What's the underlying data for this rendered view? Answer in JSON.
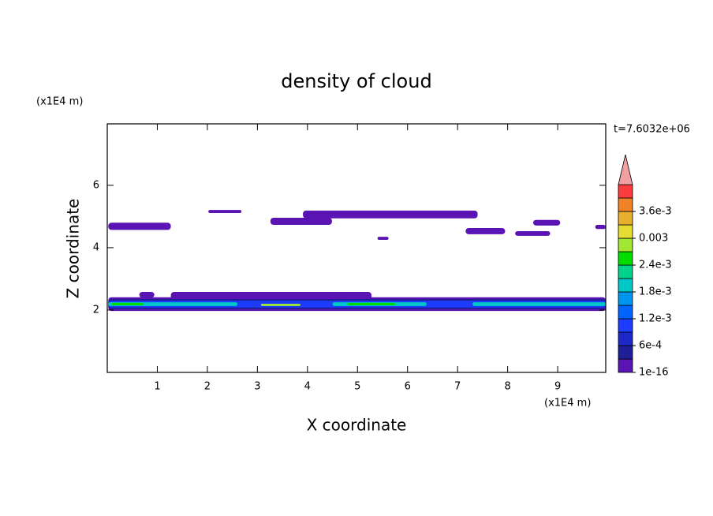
{
  "chart_data": {
    "type": "contour",
    "title": "density of cloud",
    "x_label": "X coordinate",
    "y_label": "Z coordinate",
    "x_unit": "(x1E4 m)",
    "y_unit": "(x1E4 m)",
    "time_label": "t=7.6032e+06",
    "xlim": [
      0,
      9.96
    ],
    "ylim": [
      0,
      7.97
    ],
    "xticks": [
      1,
      2,
      3,
      4,
      5,
      6,
      7,
      8,
      9
    ],
    "yticks": [
      2,
      4,
      6
    ],
    "levels": [
      1e-16,
      0.0003,
      0.0006,
      0.0009,
      0.0012,
      0.0015,
      0.0018,
      0.0021,
      0.0024,
      0.0027,
      0.003,
      0.0033,
      0.0036,
      0.0039
    ],
    "level_colors": [
      "#5a14b4",
      "#1e1e96",
      "#1e28c8",
      "#1e3cff",
      "#0064ff",
      "#0096f0",
      "#00c8c8",
      "#00d28c",
      "#00dc00",
      "#a0e632",
      "#e6dc32",
      "#e6af2d",
      "#f08228",
      "#fa3c3c"
    ],
    "overflow_color": "#f0a0a0",
    "colorbar_labels": [
      {
        "value": 1e-16,
        "label": "1e-16"
      },
      {
        "value": 0.0006,
        "label": "6e-4"
      },
      {
        "value": 0.0012,
        "label": "1.2e-3"
      },
      {
        "value": 0.0018,
        "label": "1.8e-3"
      },
      {
        "value": 0.0024,
        "label": "2.4e-3"
      },
      0.003,
      {
        "value": 0.0036,
        "label": "3.6e-3"
      }
    ],
    "patches": [
      {
        "x": [
          0.02,
          1.27
        ],
        "z": [
          4.57,
          4.8
        ],
        "level": 0
      },
      {
        "x": [
          2.02,
          2.68
        ],
        "z": [
          5.11,
          5.21
        ],
        "level": 0
      },
      {
        "x": [
          3.26,
          4.49
        ],
        "z": [
          4.73,
          4.96
        ],
        "level": 0
      },
      {
        "x": [
          3.91,
          7.4
        ],
        "z": [
          4.94,
          5.19
        ],
        "level": 0
      },
      {
        "x": [
          5.4,
          5.62
        ],
        "z": [
          4.25,
          4.35
        ],
        "level": 0
      },
      {
        "x": [
          7.16,
          7.95
        ],
        "z": [
          4.43,
          4.63
        ],
        "level": 0
      },
      {
        "x": [
          8.15,
          8.85
        ],
        "z": [
          4.38,
          4.53
        ],
        "level": 0
      },
      {
        "x": [
          8.51,
          9.05
        ],
        "z": [
          4.71,
          4.89
        ],
        "level": 0
      },
      {
        "x": [
          9.75,
          9.96
        ],
        "z": [
          4.6,
          4.73
        ],
        "level": 0
      },
      {
        "x": [
          0.64,
          0.94
        ],
        "z": [
          2.4,
          2.58
        ],
        "level": 0
      },
      {
        "x": [
          1.27,
          5.28
        ],
        "z": [
          2.33,
          2.58
        ],
        "level": 0
      },
      {
        "x": [
          0.02,
          9.96
        ],
        "z": [
          1.97,
          2.41
        ],
        "level": 0
      },
      {
        "x": [
          0.02,
          9.96
        ],
        "z": [
          2.03,
          2.35
        ],
        "level": 1
      },
      {
        "x": [
          0.02,
          9.96
        ],
        "z": [
          2.08,
          2.3
        ],
        "level": 3
      },
      {
        "x": [
          0.02,
          2.6
        ],
        "z": [
          2.13,
          2.25
        ],
        "level": 6
      },
      {
        "x": [
          4.5,
          6.38
        ],
        "z": [
          2.13,
          2.25
        ],
        "level": 6
      },
      {
        "x": [
          7.3,
          9.96
        ],
        "z": [
          2.13,
          2.25
        ],
        "level": 6
      },
      {
        "x": [
          0.09,
          0.72
        ],
        "z": [
          2.15,
          2.23
        ],
        "level": 8
      },
      {
        "x": [
          4.8,
          5.75
        ],
        "z": [
          2.15,
          2.23
        ],
        "level": 8
      },
      {
        "x": [
          3.07,
          3.86
        ],
        "z": [
          2.13,
          2.2
        ],
        "level": 9
      }
    ]
  }
}
